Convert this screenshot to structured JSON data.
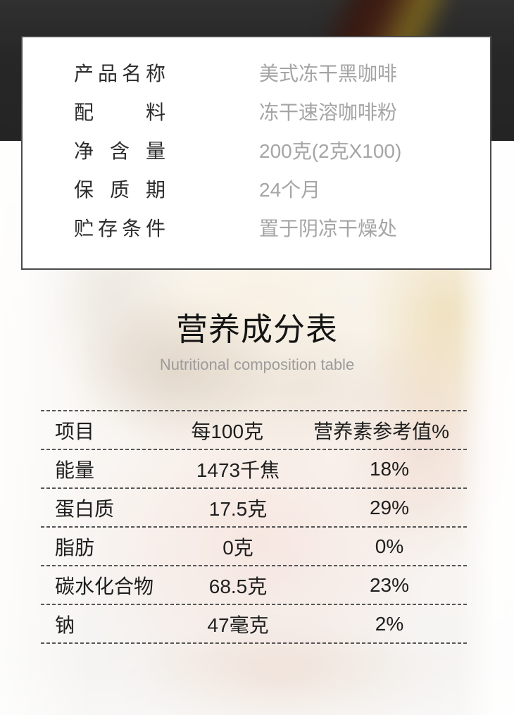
{
  "product": {
    "rows": [
      {
        "label": "产品名称",
        "value": "美式冻干黑咖啡"
      },
      {
        "label": "配料",
        "value": "冻干速溶咖啡粉"
      },
      {
        "label": "净含量",
        "value": "200克(2克X100)"
      },
      {
        "label": "保质期",
        "value": "24个月"
      },
      {
        "label": "贮存条件",
        "value": "置于阴凉干燥处"
      }
    ]
  },
  "nutrition": {
    "title": "营养成分表",
    "subtitle": "Nutritional composition table",
    "table": {
      "headers": [
        "项目",
        "每100克",
        "营养素参考值%"
      ],
      "rows": [
        {
          "item": "能量",
          "per100g": "1473千焦",
          "nrv": "18%"
        },
        {
          "item": "蛋白质",
          "per100g": "17.5克",
          "nrv": "29%"
        },
        {
          "item": "脂肪",
          "per100g": "0克",
          "nrv": "0%"
        },
        {
          "item": "碳水化合物",
          "per100g": "68.5克",
          "nrv": "23%"
        },
        {
          "item": "钠",
          "per100g": "47毫克",
          "nrv": "2%"
        }
      ]
    }
  },
  "colors": {
    "dark_band": "#272727",
    "card_border": "#4b4b4b",
    "label_text": "#2d2d2d",
    "value_text": "#a5a5a5",
    "title_text": "#141414",
    "subtitle_text": "#9c9c9c",
    "dash_line": "#565656"
  }
}
